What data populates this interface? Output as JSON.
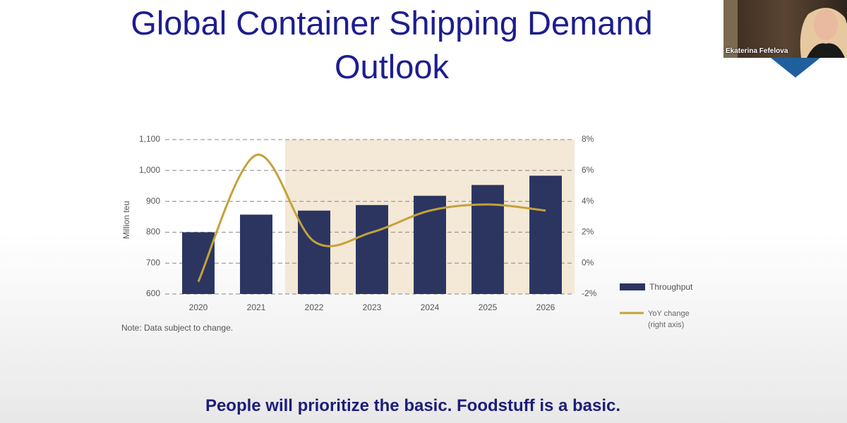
{
  "slide": {
    "title": "Global Container Shipping Demand Outlook"
  },
  "chart_data": {
    "type": "bar",
    "y_axis_label": "Million teu",
    "note": "Note: Data subject to change.",
    "categories": [
      "2020",
      "2021",
      "2022",
      "2023",
      "2024",
      "2025",
      "2026"
    ],
    "series": [
      {
        "name": "Throughput",
        "color": "#2b3560",
        "type": "bar",
        "values": [
          800,
          857,
          870,
          888,
          918,
          953,
          983
        ]
      },
      {
        "name": "YoY change (right axis)",
        "color": "#c4a23a",
        "type": "line",
        "axis": "y2",
        "values": [
          -1.2,
          7.0,
          1.4,
          2.0,
          3.4,
          3.8,
          3.4
        ]
      }
    ],
    "ylim": [
      600,
      1100
    ],
    "yticks": [
      600,
      700,
      800,
      900,
      {
        "value": 1000,
        "label": "1,000"
      },
      {
        "value": 1100,
        "label": "1,100"
      }
    ],
    "y2lim": [
      -2,
      8
    ],
    "y2ticks": [
      {
        "value": -2,
        "label": "-2%"
      },
      {
        "value": 0,
        "label": "0%"
      },
      {
        "value": 2,
        "label": "2%"
      },
      {
        "value": 4,
        "label": "4%"
      },
      {
        "value": 6,
        "label": "6%"
      },
      {
        "value": 8,
        "label": "8%"
      }
    ],
    "grid": true,
    "legend": "right",
    "shade_start_index": 2,
    "shade_color": "#f4e8d6"
  },
  "caption": "People will prioritize the basic. Foodstuff is a basic.",
  "participant": {
    "name": "Ekaterina Fefelova"
  }
}
